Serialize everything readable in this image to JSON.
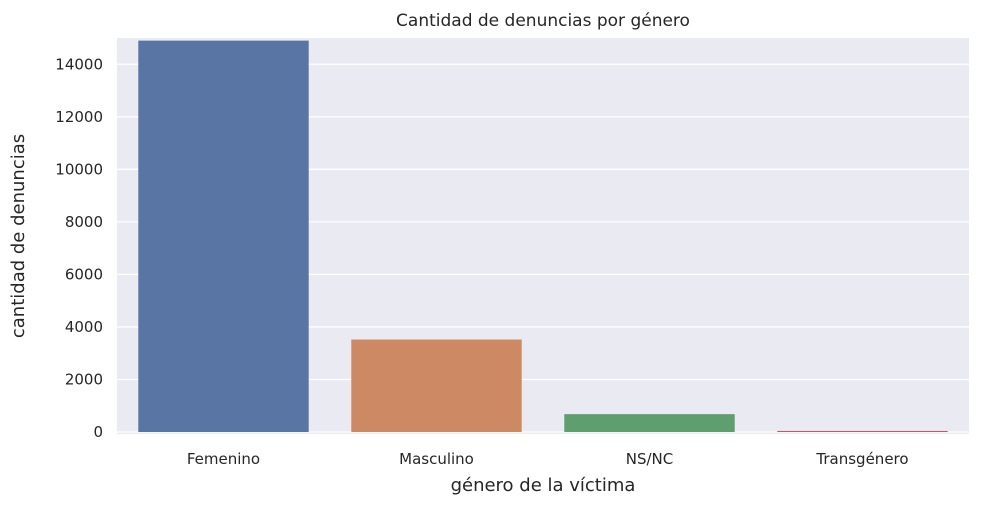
{
  "chart_data": {
    "type": "bar",
    "title": "Cantidad de denuncias por género",
    "xlabel": "género de la víctima",
    "ylabel": "cantidad de denuncias",
    "categories": [
      "Femenino",
      "Masculino",
      "NS/NC",
      "Transgénero"
    ],
    "values": [
      14900,
      3520,
      680,
      40
    ],
    "colors": [
      "#5875a4",
      "#cc8963",
      "#5f9e6e",
      "#b55d60"
    ],
    "ylim": [
      0,
      15000
    ],
    "yticks": [
      0,
      2000,
      4000,
      6000,
      8000,
      10000,
      12000,
      14000
    ],
    "grid": true,
    "background": "#eaeaf2"
  }
}
